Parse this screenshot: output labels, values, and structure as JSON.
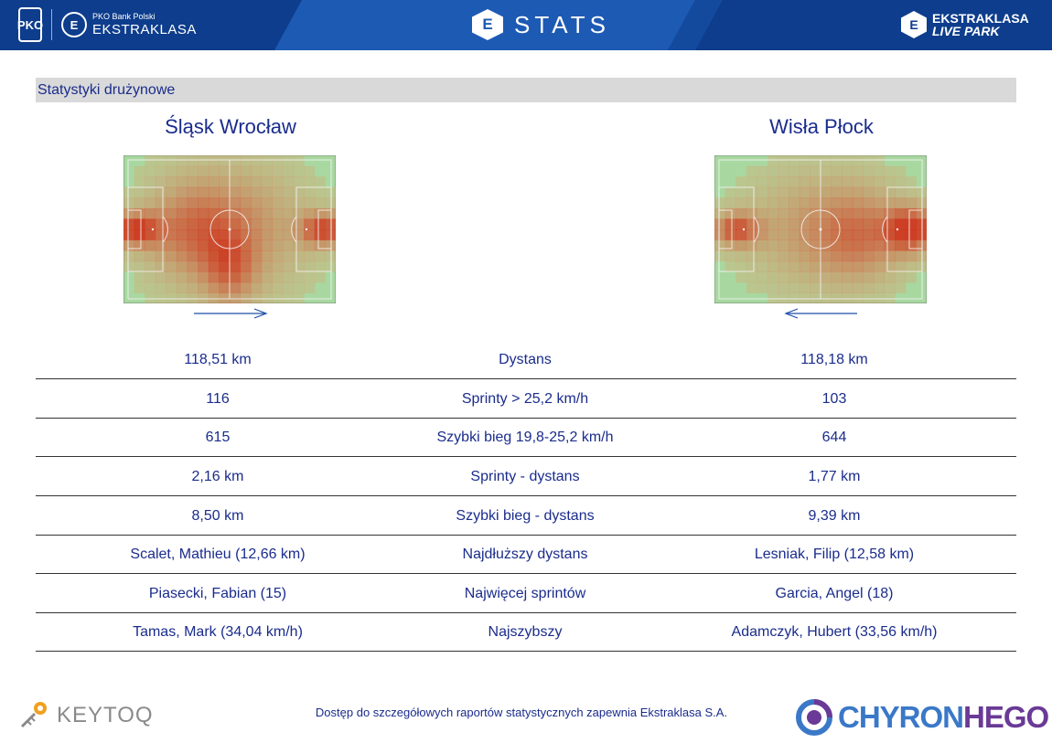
{
  "header": {
    "pko_logo": "PKO",
    "ekstraklasa_icon": "E",
    "league_subtitle": "PKO Bank Polski",
    "league_name": "EKSTRAKLASA",
    "stats_icon": "E",
    "title": "STATS",
    "livepark_icon": "E",
    "livepark_line1": "EKSTRAKLASA",
    "livepark_line2": "LIVE PARK"
  },
  "section": {
    "title": "Statystyki drużynowe"
  },
  "teams": {
    "home": {
      "name": "Śląsk Wrocław",
      "attack_direction": "right"
    },
    "away": {
      "name": "Wisła Płock",
      "attack_direction": "left"
    }
  },
  "colors": {
    "header_bg": "#0d3d8c",
    "accent": "#1d5ab4",
    "text": "#1a2c8c",
    "heat_hot": "#d03018",
    "pitch": "#a8d8a0"
  },
  "stats": [
    {
      "home": "118,51 km",
      "label": "Dystans",
      "away": "118,18 km"
    },
    {
      "home": "116",
      "label": "Sprinty > 25,2 km/h",
      "away": "103"
    },
    {
      "home": "615",
      "label": "Szybki bieg 19,8-25,2 km/h",
      "away": "644"
    },
    {
      "home": "2,16 km",
      "label": "Sprinty - dystans",
      "away": "1,77 km"
    },
    {
      "home": "8,50 km",
      "label": "Szybki bieg - dystans",
      "away": "9,39 km"
    },
    {
      "home": "Scalet, Mathieu (12,66 km)",
      "label": "Najdłuższy dystans",
      "away": "Lesniak, Filip (12,58 km)"
    },
    {
      "home": "Piasecki, Fabian (15)",
      "label": "Najwięcej sprintów",
      "away": "Garcia, Angel (18)"
    },
    {
      "home": "Tamas, Mark (34,04 km/h)",
      "label": "Najszybszy",
      "away": "Adamczyk, Hubert (33,56 km/h)"
    }
  ],
  "footer": {
    "note": "Dostęp do szczegółowych raportów statystycznych zapewnia Ekstraklasa S.A.",
    "keytoq": "KEYTOQ",
    "chyron_a": "CHYRON",
    "chyron_b": "HEGO"
  }
}
